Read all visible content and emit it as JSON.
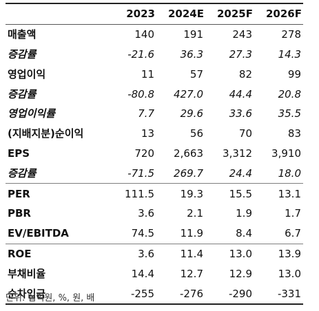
{
  "table": {
    "columns": [
      "",
      "2023",
      "2024E",
      "2025F",
      "2026F"
    ],
    "rows": [
      {
        "label": "매출액",
        "values": [
          "140",
          "191",
          "243",
          "278"
        ],
        "italic": false,
        "sep": false
      },
      {
        "label": "증감률",
        "values": [
          "-21.6",
          "36.3",
          "27.3",
          "14.3"
        ],
        "italic": true,
        "sep": false
      },
      {
        "label": "영업이익",
        "values": [
          "11",
          "57",
          "82",
          "99"
        ],
        "italic": false,
        "sep": false
      },
      {
        "label": "증감률",
        "values": [
          "-80.8",
          "427.0",
          "44.4",
          "20.8"
        ],
        "italic": true,
        "sep": false
      },
      {
        "label": "영업이익률",
        "values": [
          "7.7",
          "29.6",
          "33.6",
          "35.5"
        ],
        "italic": true,
        "sep": false
      },
      {
        "label": "(지배지분)순이익",
        "values": [
          "13",
          "56",
          "70",
          "83"
        ],
        "italic": false,
        "sep": false
      },
      {
        "label": "EPS",
        "values": [
          "720",
          "2,663",
          "3,312",
          "3,910"
        ],
        "italic": false,
        "sep": false
      },
      {
        "label": "증감률",
        "values": [
          "-71.5",
          "269.7",
          "24.4",
          "18.0"
        ],
        "italic": true,
        "sep": false
      },
      {
        "label": "PER",
        "values": [
          "111.5",
          "19.3",
          "15.5",
          "13.1"
        ],
        "italic": false,
        "sep": true
      },
      {
        "label": "PBR",
        "values": [
          "3.6",
          "2.1",
          "1.9",
          "1.7"
        ],
        "italic": false,
        "sep": false
      },
      {
        "label": "EV/EBITDA",
        "values": [
          "74.5",
          "11.9",
          "8.4",
          "6.7"
        ],
        "italic": false,
        "sep": false
      },
      {
        "label": "ROE",
        "values": [
          "3.6",
          "11.4",
          "13.0",
          "13.9"
        ],
        "italic": false,
        "sep": true
      },
      {
        "label": "부채비율",
        "values": [
          "14.4",
          "12.7",
          "12.9",
          "13.0"
        ],
        "italic": false,
        "sep": false
      },
      {
        "label": "순차입금",
        "values": [
          "-255",
          "-276",
          "-290",
          "-331"
        ],
        "italic": false,
        "sep": false
      }
    ]
  },
  "note": "단위: 십억원, %, 원, 배"
}
